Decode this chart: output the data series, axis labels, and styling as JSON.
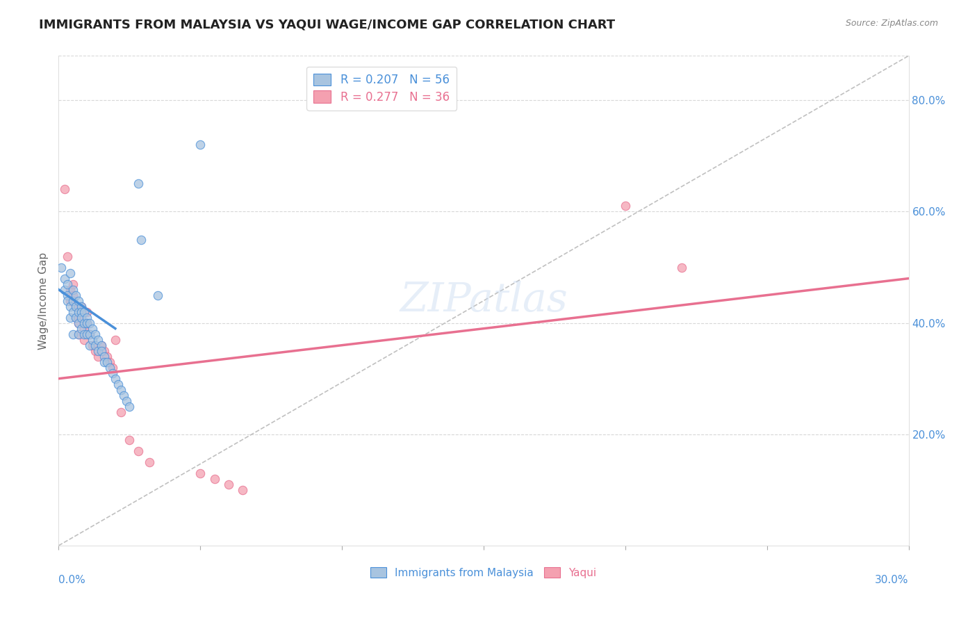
{
  "title": "IMMIGRANTS FROM MALAYSIA VS YAQUI WAGE/INCOME GAP CORRELATION CHART",
  "source": "Source: ZipAtlas.com",
  "ylabel": "Wage/Income Gap",
  "blue_R": 0.207,
  "blue_N": 56,
  "pink_R": 0.277,
  "pink_N": 36,
  "blue_color": "#a8c4e0",
  "pink_color": "#f4a0b0",
  "blue_trend_color": "#4a90d9",
  "pink_trend_color": "#e87090",
  "ref_line_color": "#c0c0c0",
  "legend_blue_label": "Immigrants from Malaysia",
  "legend_pink_label": "Yaqui",
  "watermark": "ZIPatlas",
  "blue_scatter_x": [
    0.001,
    0.002,
    0.002,
    0.003,
    0.003,
    0.003,
    0.004,
    0.004,
    0.004,
    0.005,
    0.005,
    0.005,
    0.005,
    0.006,
    0.006,
    0.006,
    0.007,
    0.007,
    0.007,
    0.007,
    0.008,
    0.008,
    0.008,
    0.008,
    0.009,
    0.009,
    0.009,
    0.01,
    0.01,
    0.01,
    0.011,
    0.011,
    0.011,
    0.012,
    0.012,
    0.013,
    0.013,
    0.014,
    0.014,
    0.015,
    0.015,
    0.016,
    0.016,
    0.017,
    0.018,
    0.019,
    0.02,
    0.021,
    0.022,
    0.023,
    0.024,
    0.025,
    0.028,
    0.029,
    0.035,
    0.05
  ],
  "blue_scatter_y": [
    0.5,
    0.48,
    0.46,
    0.47,
    0.45,
    0.44,
    0.49,
    0.43,
    0.41,
    0.46,
    0.44,
    0.42,
    0.38,
    0.45,
    0.43,
    0.41,
    0.44,
    0.42,
    0.4,
    0.38,
    0.43,
    0.42,
    0.41,
    0.39,
    0.42,
    0.4,
    0.38,
    0.41,
    0.4,
    0.38,
    0.4,
    0.38,
    0.36,
    0.39,
    0.37,
    0.38,
    0.36,
    0.37,
    0.35,
    0.36,
    0.35,
    0.34,
    0.33,
    0.33,
    0.32,
    0.31,
    0.3,
    0.29,
    0.28,
    0.27,
    0.26,
    0.25,
    0.65,
    0.55,
    0.45,
    0.72
  ],
  "pink_scatter_x": [
    0.002,
    0.003,
    0.004,
    0.004,
    0.005,
    0.005,
    0.006,
    0.006,
    0.007,
    0.007,
    0.008,
    0.008,
    0.009,
    0.009,
    0.01,
    0.01,
    0.011,
    0.012,
    0.013,
    0.014,
    0.015,
    0.016,
    0.017,
    0.018,
    0.019,
    0.02,
    0.022,
    0.025,
    0.028,
    0.032,
    0.05,
    0.055,
    0.06,
    0.065,
    0.2,
    0.22
  ],
  "pink_scatter_y": [
    0.64,
    0.52,
    0.46,
    0.44,
    0.47,
    0.45,
    0.43,
    0.41,
    0.4,
    0.38,
    0.43,
    0.41,
    0.39,
    0.37,
    0.42,
    0.4,
    0.38,
    0.36,
    0.35,
    0.34,
    0.36,
    0.35,
    0.34,
    0.33,
    0.32,
    0.37,
    0.24,
    0.19,
    0.17,
    0.15,
    0.13,
    0.12,
    0.11,
    0.1,
    0.61,
    0.5
  ],
  "blue_trend_x": [
    0.0,
    0.02
  ],
  "blue_trend_y": [
    0.46,
    0.39
  ],
  "pink_trend_x": [
    0.0,
    0.3
  ],
  "pink_trend_y": [
    0.3,
    0.48
  ],
  "ref_line_x": [
    0.0,
    0.3
  ],
  "ref_line_y": [
    0.0,
    0.88
  ],
  "xmin": 0.0,
  "xmax": 0.3,
  "ymin": 0.0,
  "ymax": 0.88
}
